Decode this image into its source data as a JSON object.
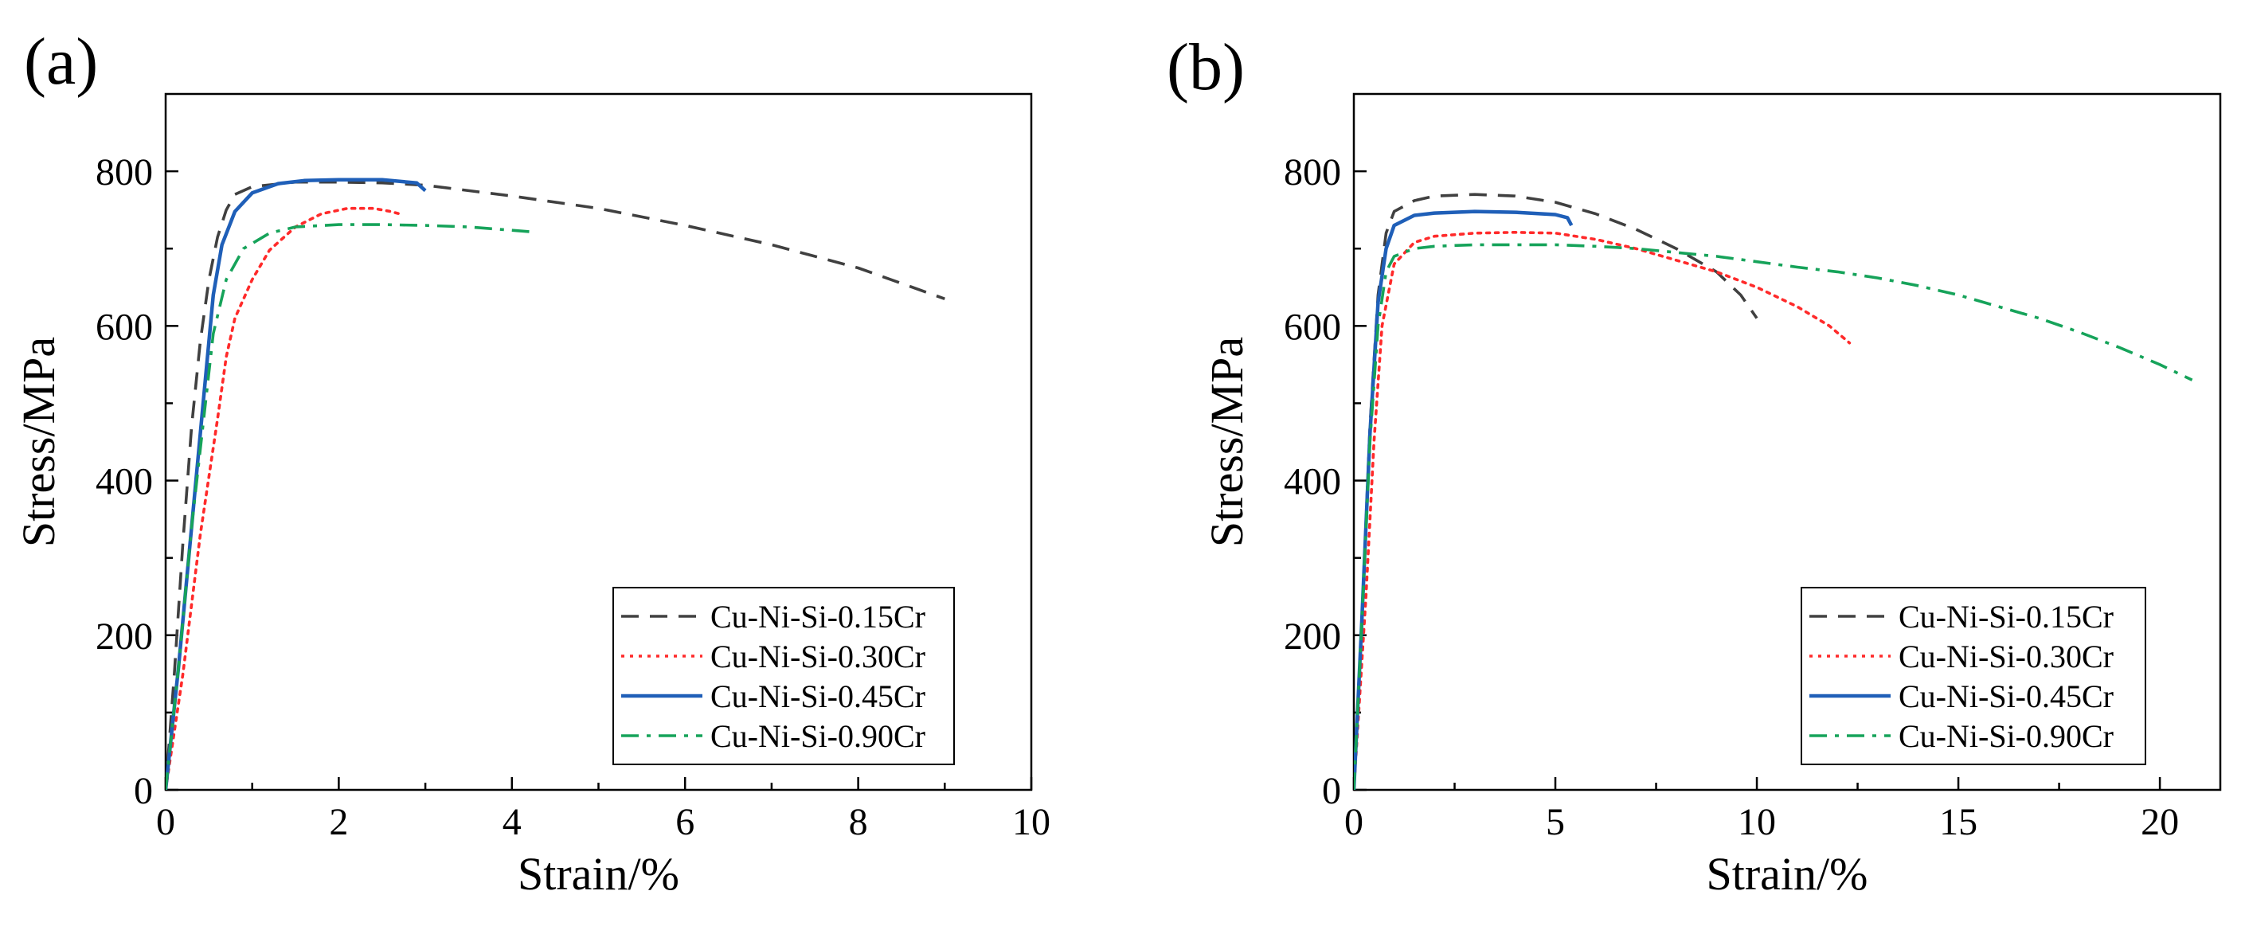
{
  "chart_data": [
    {
      "type": "line",
      "panel_label": "(a)",
      "xlabel": "Strain/%",
      "ylabel": "Stress/MPa",
      "xlim": [
        0,
        10
      ],
      "ylim": [
        0,
        900
      ],
      "xticks": [
        0,
        2,
        4,
        6,
        8,
        10
      ],
      "yticks": [
        0,
        200,
        400,
        600,
        800
      ],
      "legend_position": "bottom-right",
      "series": [
        {
          "name": "Cu-Ni-Si-0.15Cr",
          "style": "dashed",
          "color": "#404040",
          "points": [
            [
              0,
              0
            ],
            [
              0.1,
              150
            ],
            [
              0.2,
              320
            ],
            [
              0.3,
              470
            ],
            [
              0.4,
              580
            ],
            [
              0.5,
              660
            ],
            [
              0.6,
              715
            ],
            [
              0.7,
              750
            ],
            [
              0.8,
              770
            ],
            [
              1.0,
              780
            ],
            [
              1.5,
              786
            ],
            [
              2,
              786
            ],
            [
              2.5,
              785
            ],
            [
              3,
              782
            ],
            [
              4,
              768
            ],
            [
              5,
              752
            ],
            [
              6,
              730
            ],
            [
              7,
              705
            ],
            [
              8,
              675
            ],
            [
              9,
              635
            ]
          ]
        },
        {
          "name": "Cu-Ni-Si-0.30Cr",
          "style": "dotted",
          "color": "#ff2a2a",
          "points": [
            [
              0,
              0
            ],
            [
              0.2,
              150
            ],
            [
              0.4,
              330
            ],
            [
              0.6,
              480
            ],
            [
              0.7,
              560
            ],
            [
              0.8,
              610
            ],
            [
              1.0,
              660
            ],
            [
              1.2,
              698
            ],
            [
              1.5,
              728
            ],
            [
              1.8,
              745
            ],
            [
              2.1,
              752
            ],
            [
              2.4,
              752
            ],
            [
              2.6,
              748
            ],
            [
              2.7,
              745
            ]
          ]
        },
        {
          "name": "Cu-Ni-Si-0.45Cr",
          "style": "solid",
          "color": "#1f5fb8",
          "points": [
            [
              0,
              0
            ],
            [
              0.15,
              160
            ],
            [
              0.3,
              340
            ],
            [
              0.45,
              520
            ],
            [
              0.55,
              640
            ],
            [
              0.65,
              705
            ],
            [
              0.8,
              748
            ],
            [
              1.0,
              772
            ],
            [
              1.3,
              784
            ],
            [
              1.6,
              788
            ],
            [
              2,
              789
            ],
            [
              2.5,
              789
            ],
            [
              2.9,
              785
            ],
            [
              3.0,
              775
            ]
          ]
        },
        {
          "name": "Cu-Ni-Si-0.90Cr",
          "style": "dashdot",
          "color": "#16a35a",
          "points": [
            [
              0,
              0
            ],
            [
              0.15,
              160
            ],
            [
              0.3,
              340
            ],
            [
              0.45,
              490
            ],
            [
              0.55,
              590
            ],
            [
              0.7,
              660
            ],
            [
              0.9,
              700
            ],
            [
              1.2,
              720
            ],
            [
              1.5,
              728
            ],
            [
              2,
              731
            ],
            [
              2.5,
              731
            ],
            [
              3,
              730
            ],
            [
              3.5,
              728
            ],
            [
              4.2,
              722
            ]
          ]
        }
      ]
    },
    {
      "type": "line",
      "panel_label": "(b)",
      "xlabel": "Strain/%",
      "ylabel": "Stress/MPa",
      "xlim": [
        0,
        21.5
      ],
      "ylim": [
        0,
        900
      ],
      "xticks": [
        0,
        5,
        10,
        15,
        20
      ],
      "yticks": [
        0,
        200,
        400,
        600,
        800
      ],
      "legend_position": "bottom-right",
      "series": [
        {
          "name": "Cu-Ni-Si-0.15Cr",
          "style": "dashed",
          "color": "#404040",
          "points": [
            [
              0,
              0
            ],
            [
              0.2,
              220
            ],
            [
              0.4,
              470
            ],
            [
              0.6,
              640
            ],
            [
              0.8,
              720
            ],
            [
              1.0,
              748
            ],
            [
              1.5,
              762
            ],
            [
              2,
              768
            ],
            [
              3,
              770
            ],
            [
              4,
              768
            ],
            [
              5,
              760
            ],
            [
              6,
              745
            ],
            [
              7,
              725
            ],
            [
              8,
              700
            ],
            [
              9,
              670
            ],
            [
              9.6,
              640
            ],
            [
              10,
              610
            ]
          ]
        },
        {
          "name": "Cu-Ni-Si-0.30Cr",
          "style": "dotted",
          "color": "#ff2a2a",
          "points": [
            [
              0,
              0
            ],
            [
              0.3,
              250
            ],
            [
              0.5,
              450
            ],
            [
              0.7,
              600
            ],
            [
              1.0,
              680
            ],
            [
              1.5,
              708
            ],
            [
              2,
              716
            ],
            [
              3,
              720
            ],
            [
              4,
              721
            ],
            [
              5,
              720
            ],
            [
              6,
              712
            ],
            [
              7,
              700
            ],
            [
              8,
              685
            ],
            [
              9,
              670
            ],
            [
              10,
              650
            ],
            [
              11,
              625
            ],
            [
              11.8,
              600
            ],
            [
              12.3,
              578
            ]
          ]
        },
        {
          "name": "Cu-Ni-Si-0.45Cr",
          "style": "solid",
          "color": "#1f5fb8",
          "points": [
            [
              0,
              0
            ],
            [
              0.2,
              220
            ],
            [
              0.4,
              460
            ],
            [
              0.6,
              630
            ],
            [
              0.8,
              700
            ],
            [
              1.0,
              730
            ],
            [
              1.5,
              743
            ],
            [
              2,
              746
            ],
            [
              3,
              748
            ],
            [
              4,
              747
            ],
            [
              5,
              744
            ],
            [
              5.3,
              740
            ],
            [
              5.4,
              730
            ]
          ]
        },
        {
          "name": "Cu-Ni-Si-0.90Cr",
          "style": "dashdot",
          "color": "#16a35a",
          "points": [
            [
              0,
              0
            ],
            [
              0.2,
              220
            ],
            [
              0.4,
              450
            ],
            [
              0.6,
              600
            ],
            [
              0.8,
              670
            ],
            [
              1.0,
              690
            ],
            [
              1.5,
              700
            ],
            [
              2,
              703
            ],
            [
              3,
              705
            ],
            [
              4,
              705
            ],
            [
              5,
              705
            ],
            [
              6,
              703
            ],
            [
              7,
              700
            ],
            [
              8,
              695
            ],
            [
              9,
              690
            ],
            [
              10,
              683
            ],
            [
              11,
              676
            ],
            [
              12,
              670
            ],
            [
              13,
              662
            ],
            [
              14,
              652
            ],
            [
              15,
              640
            ],
            [
              16,
              625
            ],
            [
              17,
              610
            ],
            [
              18,
              592
            ],
            [
              19,
              572
            ],
            [
              20,
              550
            ],
            [
              20.8,
              530
            ]
          ]
        }
      ]
    }
  ]
}
